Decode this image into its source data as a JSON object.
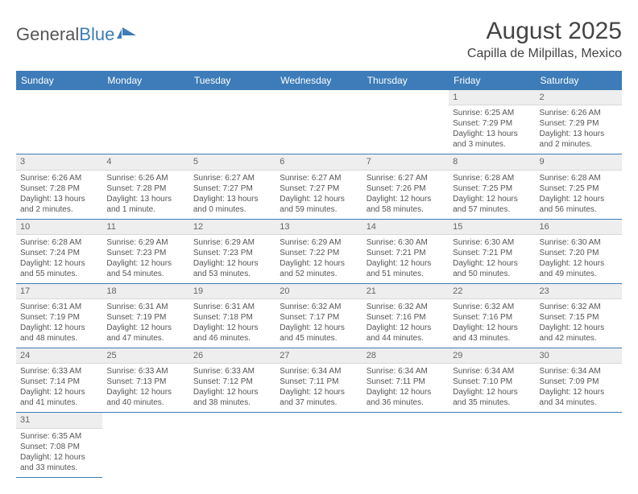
{
  "logo": {
    "text1": "General",
    "text2": "Blue"
  },
  "title": "August 2025",
  "location": "Capilla de Milpillas, Mexico",
  "colors": {
    "header_bg": "#3d7cb8",
    "header_fg": "#ffffff",
    "daynum_bg": "#eeeeee",
    "cell_border": "#3d7cb8",
    "text": "#555555"
  },
  "weekdays": [
    "Sunday",
    "Monday",
    "Tuesday",
    "Wednesday",
    "Thursday",
    "Friday",
    "Saturday"
  ],
  "weeks": [
    [
      null,
      null,
      null,
      null,
      null,
      {
        "n": "1",
        "sr": "Sunrise: 6:25 AM",
        "ss": "Sunset: 7:29 PM",
        "dl": "Daylight: 13 hours and 3 minutes."
      },
      {
        "n": "2",
        "sr": "Sunrise: 6:26 AM",
        "ss": "Sunset: 7:29 PM",
        "dl": "Daylight: 13 hours and 2 minutes."
      }
    ],
    [
      {
        "n": "3",
        "sr": "Sunrise: 6:26 AM",
        "ss": "Sunset: 7:28 PM",
        "dl": "Daylight: 13 hours and 2 minutes."
      },
      {
        "n": "4",
        "sr": "Sunrise: 6:26 AM",
        "ss": "Sunset: 7:28 PM",
        "dl": "Daylight: 13 hours and 1 minute."
      },
      {
        "n": "5",
        "sr": "Sunrise: 6:27 AM",
        "ss": "Sunset: 7:27 PM",
        "dl": "Daylight: 13 hours and 0 minutes."
      },
      {
        "n": "6",
        "sr": "Sunrise: 6:27 AM",
        "ss": "Sunset: 7:27 PM",
        "dl": "Daylight: 12 hours and 59 minutes."
      },
      {
        "n": "7",
        "sr": "Sunrise: 6:27 AM",
        "ss": "Sunset: 7:26 PM",
        "dl": "Daylight: 12 hours and 58 minutes."
      },
      {
        "n": "8",
        "sr": "Sunrise: 6:28 AM",
        "ss": "Sunset: 7:25 PM",
        "dl": "Daylight: 12 hours and 57 minutes."
      },
      {
        "n": "9",
        "sr": "Sunrise: 6:28 AM",
        "ss": "Sunset: 7:25 PM",
        "dl": "Daylight: 12 hours and 56 minutes."
      }
    ],
    [
      {
        "n": "10",
        "sr": "Sunrise: 6:28 AM",
        "ss": "Sunset: 7:24 PM",
        "dl": "Daylight: 12 hours and 55 minutes."
      },
      {
        "n": "11",
        "sr": "Sunrise: 6:29 AM",
        "ss": "Sunset: 7:23 PM",
        "dl": "Daylight: 12 hours and 54 minutes."
      },
      {
        "n": "12",
        "sr": "Sunrise: 6:29 AM",
        "ss": "Sunset: 7:23 PM",
        "dl": "Daylight: 12 hours and 53 minutes."
      },
      {
        "n": "13",
        "sr": "Sunrise: 6:29 AM",
        "ss": "Sunset: 7:22 PM",
        "dl": "Daylight: 12 hours and 52 minutes."
      },
      {
        "n": "14",
        "sr": "Sunrise: 6:30 AM",
        "ss": "Sunset: 7:21 PM",
        "dl": "Daylight: 12 hours and 51 minutes."
      },
      {
        "n": "15",
        "sr": "Sunrise: 6:30 AM",
        "ss": "Sunset: 7:21 PM",
        "dl": "Daylight: 12 hours and 50 minutes."
      },
      {
        "n": "16",
        "sr": "Sunrise: 6:30 AM",
        "ss": "Sunset: 7:20 PM",
        "dl": "Daylight: 12 hours and 49 minutes."
      }
    ],
    [
      {
        "n": "17",
        "sr": "Sunrise: 6:31 AM",
        "ss": "Sunset: 7:19 PM",
        "dl": "Daylight: 12 hours and 48 minutes."
      },
      {
        "n": "18",
        "sr": "Sunrise: 6:31 AM",
        "ss": "Sunset: 7:19 PM",
        "dl": "Daylight: 12 hours and 47 minutes."
      },
      {
        "n": "19",
        "sr": "Sunrise: 6:31 AM",
        "ss": "Sunset: 7:18 PM",
        "dl": "Daylight: 12 hours and 46 minutes."
      },
      {
        "n": "20",
        "sr": "Sunrise: 6:32 AM",
        "ss": "Sunset: 7:17 PM",
        "dl": "Daylight: 12 hours and 45 minutes."
      },
      {
        "n": "21",
        "sr": "Sunrise: 6:32 AM",
        "ss": "Sunset: 7:16 PM",
        "dl": "Daylight: 12 hours and 44 minutes."
      },
      {
        "n": "22",
        "sr": "Sunrise: 6:32 AM",
        "ss": "Sunset: 7:16 PM",
        "dl": "Daylight: 12 hours and 43 minutes."
      },
      {
        "n": "23",
        "sr": "Sunrise: 6:32 AM",
        "ss": "Sunset: 7:15 PM",
        "dl": "Daylight: 12 hours and 42 minutes."
      }
    ],
    [
      {
        "n": "24",
        "sr": "Sunrise: 6:33 AM",
        "ss": "Sunset: 7:14 PM",
        "dl": "Daylight: 12 hours and 41 minutes."
      },
      {
        "n": "25",
        "sr": "Sunrise: 6:33 AM",
        "ss": "Sunset: 7:13 PM",
        "dl": "Daylight: 12 hours and 40 minutes."
      },
      {
        "n": "26",
        "sr": "Sunrise: 6:33 AM",
        "ss": "Sunset: 7:12 PM",
        "dl": "Daylight: 12 hours and 38 minutes."
      },
      {
        "n": "27",
        "sr": "Sunrise: 6:34 AM",
        "ss": "Sunset: 7:11 PM",
        "dl": "Daylight: 12 hours and 37 minutes."
      },
      {
        "n": "28",
        "sr": "Sunrise: 6:34 AM",
        "ss": "Sunset: 7:11 PM",
        "dl": "Daylight: 12 hours and 36 minutes."
      },
      {
        "n": "29",
        "sr": "Sunrise: 6:34 AM",
        "ss": "Sunset: 7:10 PM",
        "dl": "Daylight: 12 hours and 35 minutes."
      },
      {
        "n": "30",
        "sr": "Sunrise: 6:34 AM",
        "ss": "Sunset: 7:09 PM",
        "dl": "Daylight: 12 hours and 34 minutes."
      }
    ],
    [
      {
        "n": "31",
        "sr": "Sunrise: 6:35 AM",
        "ss": "Sunset: 7:08 PM",
        "dl": "Daylight: 12 hours and 33 minutes."
      },
      null,
      null,
      null,
      null,
      null,
      null
    ]
  ]
}
